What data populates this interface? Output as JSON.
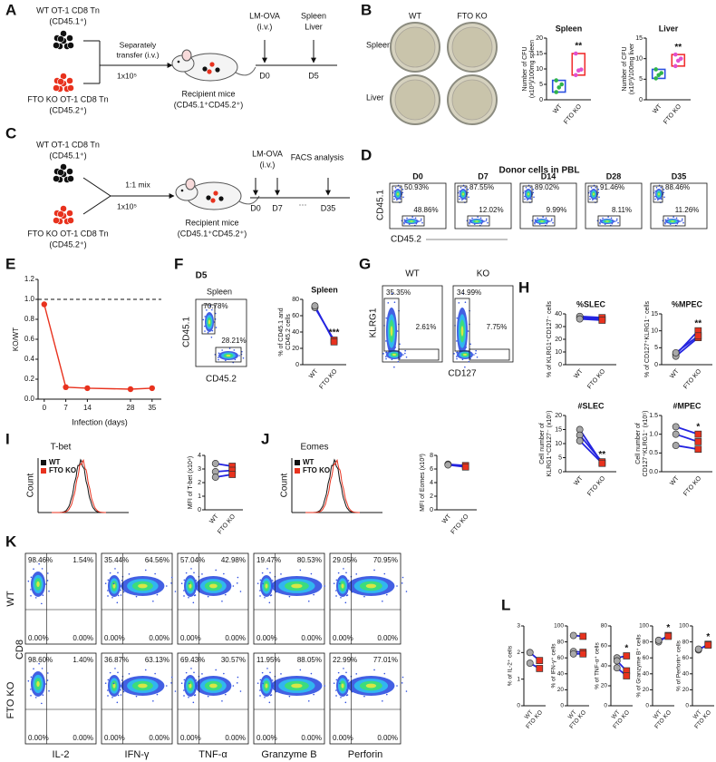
{
  "marker_colors": {
    "wt": "#a8a8a8",
    "ko": "#e8321e",
    "pair_line": "#2424e0",
    "box_wt": "#2b50e0",
    "box_ko": "#f03030",
    "dot_wt": "#2fb34a",
    "dot_ko": "#e050d0",
    "line": "#e8321e",
    "hist_wt": "#111111",
    "hist_ko": "#e8321e"
  },
  "A": {
    "letter": "A",
    "wt_cells": "WT OT-1 CD8 Tn",
    "wt_marker": "(CD45.1⁺)",
    "ko_cells": "FTO KO OT-1 CD8 Tn",
    "ko_marker": "(CD45.2⁺)",
    "transfer": [
      "Separately",
      "transfer (i.v.)"
    ],
    "dose": "1x10⁵",
    "recipient": "Recipient mice",
    "recipient_marker": "(CD45.1⁺CD45.2⁺)",
    "infection": "LM-OVA",
    "route": "(i.v.)",
    "harvest": [
      "Spleen",
      "Liver"
    ],
    "timeline": [
      "D0",
      "D5"
    ]
  },
  "B": {
    "letter": "B",
    "plate_columns": [
      "WT",
      "FTO KO"
    ],
    "plate_rows": [
      "Spleen",
      "Liver"
    ],
    "charts": [
      {
        "type": "box",
        "title": "Spleen",
        "ylabel": [
          "Number of CFU",
          "(x10³)/100mg spleen"
        ],
        "categories": [
          "WT",
          "FTO KO"
        ],
        "values": [
          [
            2.5,
            4,
            5,
            6.3
          ],
          [
            8,
            9.5,
            9.8,
            15
          ]
        ],
        "ylim": [
          0,
          20
        ],
        "yticks": [
          0,
          5,
          10,
          15,
          20
        ],
        "annotation": "**"
      },
      {
        "type": "box",
        "title": "Liver",
        "ylabel": [
          "Number of CFU",
          "(x10³)/100mg liver"
        ],
        "categories": [
          "WT",
          "FTO KO"
        ],
        "values": [
          [
            5.2,
            6,
            6.5,
            7.4
          ],
          [
            8.2,
            9.5,
            10,
            11
          ]
        ],
        "ylim": [
          0,
          15
        ],
        "yticks": [
          0,
          5,
          10,
          15
        ],
        "annotation": "**"
      }
    ]
  },
  "C": {
    "letter": "C",
    "wt_cells": "WT OT-1 CD8 Tn",
    "wt_marker": "(CD45.1⁺)",
    "ko_cells": "FTO KO OT-1 CD8 Tn",
    "ko_marker": "(CD45.2⁺)",
    "mix": "1:1 mix",
    "dose": "1x10⁵",
    "recipient": "Recipient mice",
    "recipient_marker": "(CD45.1⁺CD45.2⁺)",
    "infection": "LM-OVA",
    "route": "(i.v.)",
    "analysis": "FACS analysis",
    "timeline": [
      "D0",
      "D7",
      "···",
      "D35"
    ]
  },
  "D": {
    "letter": "D",
    "title": "Donor cells in PBL",
    "xlabel": "CD45.2",
    "ylabel": "CD45.1",
    "plots": [
      {
        "day": "D0",
        "upper": "50.93%",
        "lower": "48.86%"
      },
      {
        "day": "D7",
        "upper": "87.55%",
        "lower": "12.02%"
      },
      {
        "day": "D14",
        "upper": "89.02%",
        "lower": "9.99%"
      },
      {
        "day": "D28",
        "upper": "91.46%",
        "lower": "8.11%"
      },
      {
        "day": "D35",
        "upper": "88.46%",
        "lower": "11.26%"
      }
    ]
  },
  "E": {
    "letter": "E",
    "chart": {
      "type": "line",
      "ylabel": "KO/WT",
      "xlabel": "Infection (days)",
      "x": [
        0,
        7,
        14,
        28,
        35
      ],
      "values": [
        0.95,
        0.12,
        0.11,
        0.1,
        0.11
      ],
      "xlim": [
        -2,
        38
      ],
      "xticks": [
        0,
        7,
        14,
        28,
        35
      ],
      "ylim": [
        0,
        1.2
      ],
      "yticks": [
        {
          "value": 0,
          "label": "0.0"
        },
        0.2,
        0.4,
        0.6,
        0.8,
        {
          "value": 1,
          "label": "1.0"
        },
        1.2
      ],
      "reference": 1
    }
  },
  "F": {
    "letter": "F",
    "day": "D5",
    "flow": {
      "title": "Spleen",
      "upper": "70.78%",
      "lower": "28.21%",
      "xlabel": "CD45.2",
      "ylabel": "CD45.1"
    },
    "chart": {
      "type": "paired",
      "title": "Spleen",
      "ylabel": [
        "% of CD45.1 and",
        "CD45.2 cells"
      ],
      "categories": [
        "WT",
        "FTO KO"
      ],
      "values": [
        [
          70,
          72
        ],
        [
          30,
          28
        ]
      ],
      "ylim": [
        0,
        80
      ],
      "yticks": [
        0,
        20,
        40,
        60,
        80
      ],
      "annotation": "***"
    }
  },
  "G": {
    "letter": "G",
    "ylabel": "KLRG1",
    "xlabel": "CD127",
    "plots": [
      {
        "title": "WT",
        "upper": "35.35%",
        "lower": "2.61%"
      },
      {
        "title": "KO",
        "upper": "34.99%",
        "lower": "7.75%"
      }
    ]
  },
  "H": {
    "letter": "H",
    "charts": [
      {
        "type": "paired",
        "title": "%SLEC",
        "ylabel": [
          "% of KLRG1⁺CD127⁻ cells"
        ],
        "categories": [
          "WT",
          "FTO KO"
        ],
        "values": [
          [
            37,
            38,
            36
          ],
          [
            36,
            37,
            35
          ]
        ],
        "ylim": [
          0,
          40
        ],
        "yticks": [
          0,
          10,
          20,
          30,
          40
        ]
      },
      {
        "type": "paired",
        "title": "%MPEC",
        "ylabel": [
          "% of CD127⁺KLRG1⁻ cells"
        ],
        "categories": [
          "WT",
          "FTO KO"
        ],
        "values": [
          [
            3,
            2.5,
            3.5
          ],
          [
            10,
            8,
            8.5
          ]
        ],
        "ylim": [
          0,
          15
        ],
        "yticks": [
          0,
          5,
          10,
          15
        ],
        "annotation": "**"
      },
      {
        "type": "paired",
        "title": "#SLEC",
        "ylabel": [
          "Cell number of",
          "KLRG1⁺CD127⁻ (x10⁵)"
        ],
        "categories": [
          "WT",
          "FTO KO"
        ],
        "values": [
          [
            15,
            13,
            11
          ],
          [
            3,
            3.5,
            3
          ]
        ],
        "ylim": [
          0,
          20
        ],
        "yticks": [
          0,
          5,
          10,
          15,
          20
        ],
        "annotation": "**"
      },
      {
        "type": "paired",
        "title": "#MPEC",
        "ylabel": [
          "Cell number of",
          "CD127⁺KLRG1⁻ (x10⁵)"
        ],
        "categories": [
          "WT",
          "FTO KO"
        ],
        "values": [
          [
            1.2,
            1,
            0.7
          ],
          [
            1,
            0.8,
            0.6
          ]
        ],
        "ylim": [
          0,
          1.5
        ],
        "yticks": [
          {
            "value": 0,
            "label": "0.0"
          },
          0.5,
          {
            "value": 1,
            "label": "1.0"
          },
          1.5
        ],
        "annotation": "*"
      }
    ]
  },
  "I": {
    "letter": "I",
    "histogram": {
      "title": "T-bet",
      "ylabel": "Count",
      "legend": [
        "WT",
        "FTO KO"
      ]
    },
    "chart": {
      "type": "paired",
      "ylabel": [
        "MFI of T-bet (x10⁴)"
      ],
      "categories": [
        "WT",
        "FTO KO"
      ],
      "values": [
        [
          3.4,
          2.8,
          2.4
        ],
        [
          3.2,
          2.9,
          2.6
        ]
      ],
      "ylim": [
        0,
        4
      ],
      "yticks": [
        0,
        1,
        2,
        3,
        4
      ]
    }
  },
  "J": {
    "letter": "J",
    "histogram": {
      "title": "Eomes",
      "ylabel": "Count",
      "legend": [
        "WT",
        "FTO KO"
      ]
    },
    "chart": {
      "type": "paired",
      "ylabel": [
        "MFI of Eomes (x10³)"
      ],
      "categories": [
        "WT",
        "FTO KO"
      ],
      "values": [
        [
          6.7,
          6.6
        ],
        [
          6.5,
          6.3
        ]
      ],
      "ylim": [
        0,
        8
      ],
      "yticks": [
        0,
        2,
        4,
        6,
        8
      ]
    }
  },
  "K": {
    "letter": "K",
    "rows": [
      "WT",
      "FTO KO"
    ],
    "row_axis": "CD8",
    "columns": [
      "IL-2",
      "IFN-γ",
      "TNF-α",
      "Granzyme B",
      "Perforin"
    ],
    "quadrants": [
      [
        [
          "98.46%",
          "1.54%",
          "0.00%",
          "0.00%"
        ],
        [
          "35.44%",
          "64.56%",
          "0.00%",
          "0.00%"
        ],
        [
          "57.04%",
          "42.98%",
          "0.00%",
          "0.00%"
        ],
        [
          "19.47%",
          "80.53%",
          "0.00%",
          "0.00%"
        ],
        [
          "29.05%",
          "70.95%",
          "0.00%",
          "0.00%"
        ]
      ],
      [
        [
          "98.60%",
          "1.40%",
          "0.00%",
          "0.00%"
        ],
        [
          "36.87%",
          "63.13%",
          "0.00%",
          "0.00%"
        ],
        [
          "69.43%",
          "30.57%",
          "0.00%",
          "0.00%"
        ],
        [
          "11.95%",
          "88.05%",
          "0.00%",
          "0.00%"
        ],
        [
          "22.99%",
          "77.01%",
          "0.00%",
          "0.00%"
        ]
      ]
    ]
  },
  "L": {
    "letter": "L",
    "charts": [
      {
        "type": "paired",
        "ylabel": [
          "% of IL-2⁺ cells"
        ],
        "categories": [
          "WT",
          "FTO KO"
        ],
        "values": [
          [
            2,
            1.6
          ],
          [
            1.7,
            1.4
          ]
        ],
        "ylim": [
          0,
          3
        ],
        "yticks": [
          0,
          1,
          2,
          3
        ]
      },
      {
        "type": "paired",
        "ylabel": [
          "% of IFN-γ⁺ cells"
        ],
        "categories": [
          "WT",
          "FTO KO"
        ],
        "values": [
          [
            88,
            68,
            65
          ],
          [
            87,
            67,
            65
          ]
        ],
        "ylim": [
          0,
          100
        ],
        "yticks": [
          0,
          20,
          40,
          60,
          80,
          100
        ]
      },
      {
        "type": "paired",
        "ylabel": [
          "% of TNF-α⁺ cells"
        ],
        "categories": [
          "WT",
          "FTO KO"
        ],
        "values": [
          [
            48,
            45,
            38
          ],
          [
            50,
            35,
            30
          ]
        ],
        "ylim": [
          0,
          80
        ],
        "yticks": [
          0,
          20,
          40,
          60,
          80
        ],
        "annotation": "*"
      },
      {
        "type": "paired",
        "ylabel": [
          "% of Granzyme B⁺ cells"
        ],
        "categories": [
          "WT",
          "FTO KO"
        ],
        "values": [
          [
            80,
            82
          ],
          [
            88,
            87
          ]
        ],
        "ylim": [
          0,
          100
        ],
        "yticks": [
          0,
          20,
          40,
          60,
          80,
          100
        ],
        "annotation": "*"
      },
      {
        "type": "paired",
        "ylabel": [
          "% of Perforin⁺ cells"
        ],
        "categories": [
          "WT",
          "FTO KO"
        ],
        "values": [
          [
            70,
            71
          ],
          [
            77,
            76
          ]
        ],
        "ylim": [
          0,
          100
        ],
        "yticks": [
          0,
          20,
          40,
          60,
          80,
          100
        ],
        "annotation": "*"
      }
    ]
  }
}
